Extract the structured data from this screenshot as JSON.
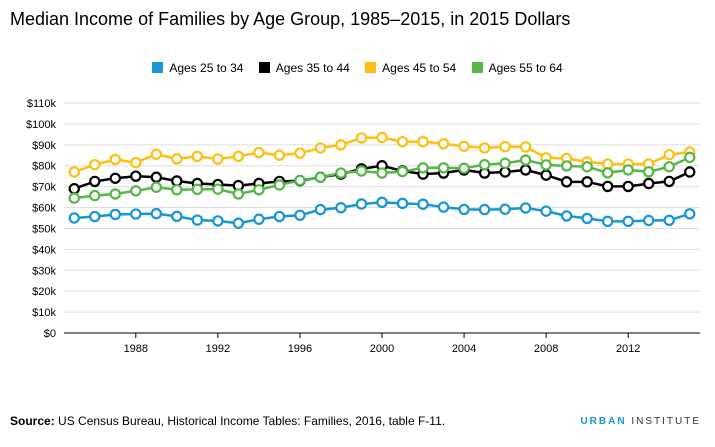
{
  "chart_data": {
    "type": "line",
    "title": "Median Income of Families by Age Group, 1985–2015, in 2015 Dollars",
    "xlabel": "",
    "ylabel": "",
    "xlim": [
      1984.5,
      2015.5
    ],
    "ylim": [
      0,
      110000
    ],
    "xticks": [
      1988,
      1992,
      1996,
      2000,
      2004,
      2008,
      2012
    ],
    "xtick_labels": [
      "1988",
      "1992",
      "1996",
      "2000",
      "2004",
      "2008",
      "2012"
    ],
    "yticks": [
      0,
      10000,
      20000,
      30000,
      40000,
      50000,
      60000,
      70000,
      80000,
      90000,
      100000,
      110000
    ],
    "ytick_labels": [
      "$0",
      "$10k",
      "$20k",
      "$30k",
      "$40k",
      "$50k",
      "$60k",
      "$70k",
      "$80k",
      "$90k",
      "$100k",
      "$110k"
    ],
    "grid": "horizontal",
    "legend_position": "top-center",
    "x": [
      1985,
      1986,
      1987,
      1988,
      1989,
      1990,
      1991,
      1992,
      1993,
      1994,
      1995,
      1996,
      1997,
      1998,
      1999,
      2000,
      2001,
      2002,
      2003,
      2004,
      2005,
      2006,
      2007,
      2008,
      2009,
      2010,
      2011,
      2012,
      2013,
      2014,
      2015
    ],
    "series": [
      {
        "name": "Ages 25 to 34",
        "color": "#1696d2",
        "values": [
          55000,
          55700,
          56700,
          56900,
          57100,
          55800,
          54000,
          53600,
          52500,
          54400,
          55700,
          56300,
          59000,
          59900,
          61700,
          62500,
          62000,
          61600,
          60200,
          59100,
          59000,
          59200,
          59800,
          58300,
          56000,
          54800,
          53400,
          53400,
          53800,
          53900,
          57000
        ]
      },
      {
        "name": "Ages 35 to 44",
        "color": "#000000",
        "values": [
          69000,
          72500,
          74000,
          75000,
          74500,
          72700,
          71500,
          71000,
          70500,
          71500,
          72500,
          72800,
          74500,
          76000,
          78500,
          80000,
          77500,
          76000,
          76500,
          78000,
          76500,
          77000,
          78000,
          75500,
          72300,
          72300,
          70100,
          70100,
          71500,
          72500,
          77000
        ]
      },
      {
        "name": "Ages 45 to 54",
        "color": "#fdbf11",
        "values": [
          77000,
          80500,
          83000,
          81500,
          85500,
          83300,
          84500,
          83200,
          84500,
          86300,
          85000,
          86000,
          88500,
          90000,
          93300,
          93500,
          91500,
          91500,
          90500,
          89300,
          88500,
          89100,
          89000,
          83800,
          83500,
          81800,
          80800,
          80800,
          80800,
          85300,
          86500
        ]
      },
      {
        "name": "Ages 55 to 64",
        "color": "#55b748",
        "values": [
          64500,
          65700,
          66500,
          68000,
          69700,
          68500,
          68700,
          68800,
          66500,
          68500,
          70800,
          73000,
          74500,
          76500,
          77500,
          76500,
          77200,
          79000,
          79000,
          78800,
          80500,
          81200,
          82700,
          80400,
          79900,
          79500,
          76600,
          78000,
          77100,
          79500,
          84000
        ]
      }
    ]
  },
  "legend": [
    {
      "label": "Ages 25 to 34",
      "color": "#1696d2"
    },
    {
      "label": "Ages 35 to 44",
      "color": "#000000"
    },
    {
      "label": "Ages 45 to 54",
      "color": "#fdbf11"
    },
    {
      "label": "Ages 55 to 64",
      "color": "#55b748"
    }
  ],
  "footer": {
    "source_label": "Source:",
    "source_text": " US Census Bureau, Historical Income Tables: Families, 2016, table F-11.",
    "logo_part1": "URBAN",
    "logo_part2": " INSTITUTE"
  }
}
